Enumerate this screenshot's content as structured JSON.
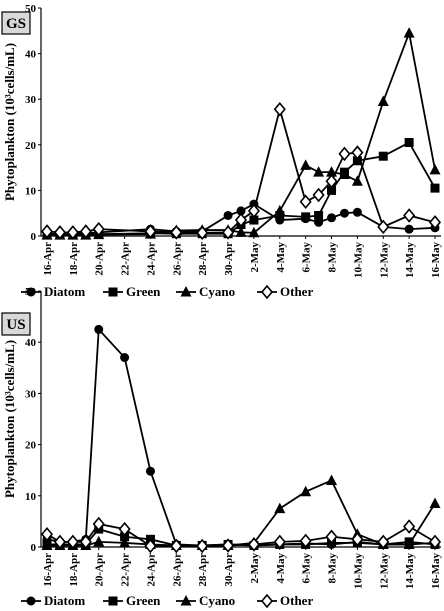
{
  "chart_data": [
    {
      "type": "line",
      "panel_label": "GS",
      "ylabel": "Phytoplankton (10³cells/mL)",
      "ylim": [
        0,
        50
      ],
      "yticks": [
        0,
        10,
        20,
        30,
        40,
        50
      ],
      "x": [
        "16-Apr",
        "17-Apr",
        "18-Apr",
        "19-Apr",
        "20-Apr",
        "24-Apr",
        "26-Apr",
        "28-Apr",
        "30-Apr",
        "1-May",
        "2-May",
        "4-May",
        "6-May",
        "7-May",
        "8-May",
        "9-May",
        "10-May",
        "12-May",
        "14-May",
        "16-May"
      ],
      "x_positions": [
        0,
        1,
        2,
        3,
        4,
        8,
        10,
        12,
        14,
        15,
        16,
        18,
        20,
        21,
        22,
        23,
        24,
        26,
        28,
        30
      ],
      "xtick_labels": [
        "16-Apr",
        "18-Apr",
        "20-Apr",
        "22-Apr",
        "24-Apr",
        "26-Apr",
        "28-Apr",
        "30-Apr",
        "2-May",
        "4-May",
        "6-May",
        "8-May",
        "10-May",
        "12-May",
        "14-May",
        "16-May"
      ],
      "xtick_positions": [
        0,
        2,
        4,
        6,
        8,
        10,
        12,
        14,
        16,
        18,
        20,
        22,
        24,
        26,
        28,
        30
      ],
      "series": [
        {
          "name": "Diatom",
          "marker": "circle",
          "values": [
            0.5,
            0.5,
            0.6,
            0.6,
            0.8,
            1.5,
            1.0,
            1.0,
            4.5,
            5.5,
            7.0,
            3.5,
            3.8,
            3.0,
            4.0,
            5.0,
            5.2,
            2.0,
            1.5,
            1.8
          ]
        },
        {
          "name": "Green",
          "marker": "square",
          "values": [
            0.3,
            0.3,
            0.3,
            0.3,
            0.4,
            0.6,
            0.5,
            0.5,
            0.5,
            2.5,
            3.5,
            4.5,
            4.2,
            4.5,
            10.0,
            14.0,
            16.5,
            17.5,
            20.5,
            10.5
          ]
        },
        {
          "name": "Cyano",
          "marker": "triangle",
          "values": [
            0.2,
            0.2,
            0.2,
            0.2,
            0.3,
            0.4,
            1.2,
            1.3,
            1.3,
            0.8,
            0.7,
            5.5,
            15.5,
            14.0,
            14.0,
            13.5,
            12.0,
            29.5,
            44.5,
            14.5
          ]
        },
        {
          "name": "Other",
          "marker": "diamond",
          "values": [
            1.0,
            0.8,
            0.8,
            1.0,
            1.5,
            1.0,
            0.8,
            0.7,
            0.8,
            3.5,
            5.5,
            27.8,
            7.5,
            9.0,
            12.0,
            18.0,
            18.3,
            2.0,
            4.5,
            3.0
          ]
        }
      ]
    },
    {
      "type": "line",
      "panel_label": "US",
      "ylabel": "Phytoplankton (10³cells/mL)",
      "ylim": [
        0,
        50
      ],
      "yticks": [
        0,
        10,
        20,
        30,
        40,
        50
      ],
      "x": [
        "16-Apr",
        "17-Apr",
        "18-Apr",
        "19-Apr",
        "20-Apr",
        "22-Apr",
        "24-Apr",
        "26-Apr",
        "28-Apr",
        "30-Apr",
        "2-May",
        "4-May",
        "6-May",
        "8-May",
        "10-May",
        "12-May",
        "14-May",
        "16-May"
      ],
      "x_positions": [
        0,
        1,
        2,
        3,
        4,
        6,
        8,
        10,
        12,
        14,
        16,
        18,
        20,
        22,
        24,
        26,
        28,
        30
      ],
      "xtick_labels": [
        "16-Apr",
        "18-Apr",
        "20-Apr",
        "22-Apr",
        "24-Apr",
        "26-Apr",
        "28-Apr",
        "30-Apr",
        "2-May",
        "4-May",
        "6-May",
        "8-May",
        "10-May",
        "12-May",
        "14-May",
        "16-May"
      ],
      "xtick_positions": [
        0,
        2,
        4,
        6,
        8,
        10,
        12,
        14,
        16,
        18,
        20,
        22,
        24,
        26,
        28,
        30
      ],
      "series": [
        {
          "name": "Diatom",
          "marker": "circle",
          "values": [
            1.5,
            1.0,
            1.0,
            1.5,
            42.5,
            37.0,
            14.8,
            0.5,
            0.3,
            0.5,
            0.3,
            0.5,
            0.7,
            0.5,
            1.0,
            0.5,
            0.5,
            0.8
          ]
        },
        {
          "name": "Green",
          "marker": "square",
          "values": [
            0.5,
            0.5,
            0.5,
            0.5,
            3.5,
            2.0,
            1.5,
            0.3,
            0.3,
            0.5,
            0.3,
            0.5,
            0.5,
            0.8,
            0.8,
            0.5,
            1.0,
            0.5
          ]
        },
        {
          "name": "Cyano",
          "marker": "triangle",
          "values": [
            0.3,
            0.3,
            0.3,
            0.3,
            1.0,
            0.8,
            0.5,
            0.3,
            0.3,
            0.3,
            0.8,
            7.5,
            10.8,
            13.0,
            2.5,
            0.5,
            0.5,
            8.5
          ]
        },
        {
          "name": "Other",
          "marker": "diamond",
          "values": [
            2.5,
            1.0,
            1.0,
            1.0,
            4.5,
            3.5,
            0.2,
            0.2,
            0.2,
            0.3,
            0.5,
            1.0,
            1.2,
            2.0,
            1.5,
            1.0,
            4.0,
            1.0
          ]
        }
      ]
    }
  ]
}
